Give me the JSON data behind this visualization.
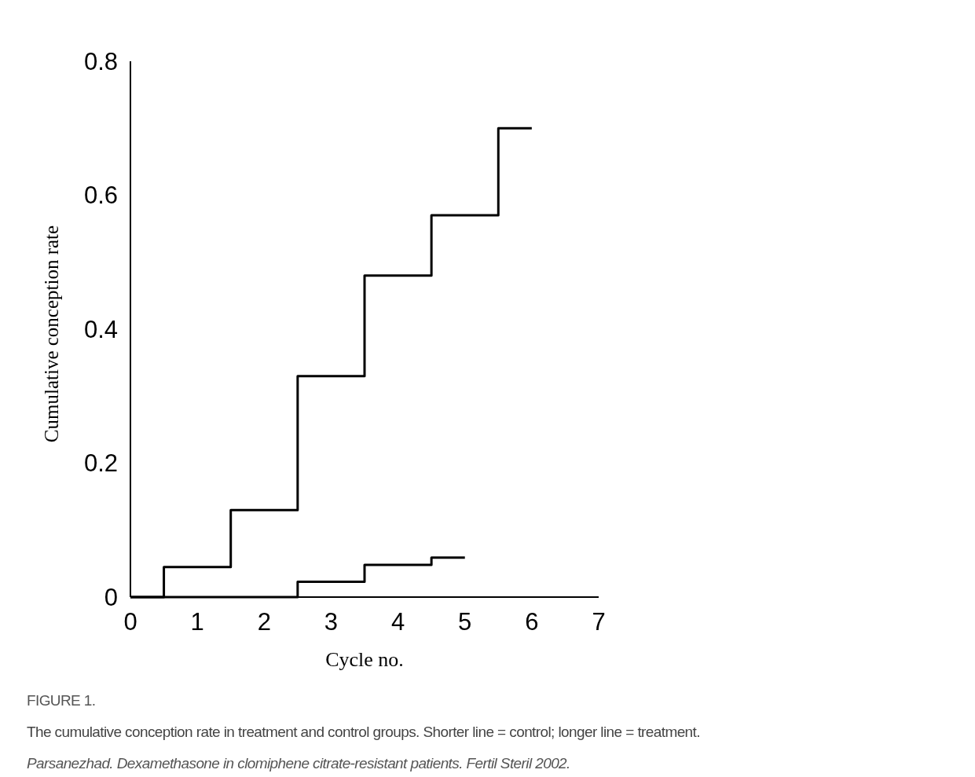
{
  "chart_data": {
    "type": "step",
    "xlabel": "Cycle no.",
    "ylabel": "Cumulative conception rate",
    "series": [
      {
        "color": "#000000",
        "x": [
          0,
          0.5,
          1.5,
          2.5,
          3.5,
          4.5,
          5.5,
          6
        ],
        "values": [
          0,
          0.045,
          0.13,
          0.33,
          0.48,
          0.57,
          0.7,
          0.7
        ]
      },
      {
        "color": "#000000",
        "x": [
          0,
          2.5,
          3.5,
          4.5,
          5
        ],
        "values": [
          0,
          0.023,
          0.048,
          0.059,
          0.059
        ]
      }
    ],
    "xlim": [
      0,
      7
    ],
    "xticks": [
      0,
      1,
      2,
      3,
      4,
      5,
      6,
      7
    ],
    "ylim": [
      0,
      0.8
    ],
    "yticks": [
      0,
      0.2,
      0.4,
      0.6,
      0.8
    ],
    "grid": false,
    "marker": "none",
    "line_style": "solid",
    "annotations": [
      "FIGURE 1.",
      "The cumulative conception rate in treatment and control groups. Shorter line = control; longer line = treatment.",
      "Parsanezhad. Dexamethasone in clomiphene citrate-resistant patients. Fertil Steril 2002."
    ]
  }
}
